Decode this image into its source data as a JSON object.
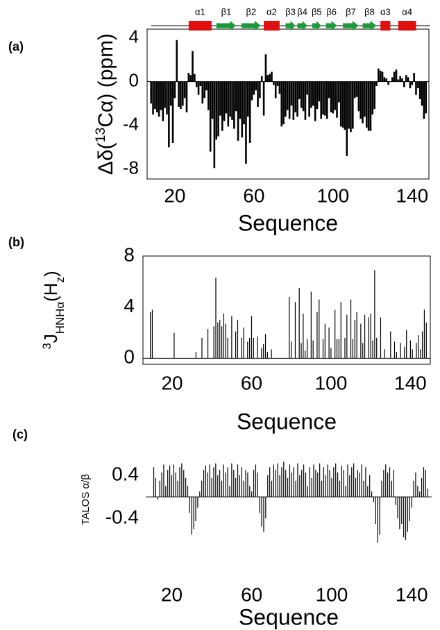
{
  "chart_data": [
    {
      "type": "bar",
      "panel_label": "(a)",
      "y_label": [
        {
          "text": "Δδ("
        },
        {
          "text": "13",
          "script": "sup"
        },
        {
          "text": "Cα) (ppm)"
        }
      ],
      "x_label": "Sequence",
      "xlim": [
        6,
        148.5
      ],
      "ylim": [
        -8.9,
        4.8
      ],
      "xticks": [
        20,
        60,
        100,
        140
      ],
      "yticks": [
        4,
        0,
        -4,
        -8
      ],
      "color": "#000000",
      "grid": false,
      "secondary_structure": [
        {
          "label": "α1",
          "kind": "helix",
          "start": 27,
          "end": 38.6,
          "color": "#e01010"
        },
        {
          "label": "β1",
          "kind": "strand",
          "start": 41,
          "end": 51,
          "color": "#1a9a3a"
        },
        {
          "label": "β2",
          "kind": "strand",
          "start": 53.7,
          "end": 63.5,
          "color": "#1a9a3a"
        },
        {
          "label": "α2",
          "kind": "helix",
          "start": 65,
          "end": 73,
          "color": "#e01010"
        },
        {
          "label": "β3",
          "kind": "strand",
          "start": 76,
          "end": 81,
          "color": "#1a9a3a"
        },
        {
          "label": "β4",
          "kind": "strand",
          "start": 82,
          "end": 87,
          "color": "#1a9a3a"
        },
        {
          "label": "β5",
          "kind": "strand",
          "start": 89.5,
          "end": 94,
          "color": "#1a9a3a"
        },
        {
          "label": "β6",
          "kind": "strand",
          "start": 96.5,
          "end": 102,
          "color": "#1a9a3a"
        },
        {
          "label": "β7",
          "kind": "strand",
          "start": 105,
          "end": 113,
          "color": "#1a9a3a"
        },
        {
          "label": "β8",
          "kind": "strand",
          "start": 115,
          "end": 122,
          "color": "#1a9a3a"
        },
        {
          "label": "α3",
          "kind": "helix",
          "start": 124,
          "end": 129,
          "color": "#e01010"
        },
        {
          "label": "α4",
          "kind": "helix",
          "start": 133,
          "end": 142,
          "color": "#e01010"
        }
      ],
      "x": [
        8,
        9,
        10,
        11,
        12,
        13,
        14,
        15,
        16,
        17,
        18,
        19,
        20,
        21,
        22,
        23,
        24,
        25,
        26,
        27,
        28,
        29,
        30,
        31,
        32,
        33,
        34,
        35,
        36,
        37,
        38,
        39,
        40,
        41,
        42,
        43,
        44,
        45,
        46,
        47,
        48,
        49,
        50,
        51,
        52,
        53,
        54,
        55,
        56,
        57,
        58,
        59,
        60,
        61,
        62,
        63,
        64,
        65,
        66,
        67,
        68,
        69,
        70,
        71,
        72,
        73,
        74,
        75,
        76,
        77,
        78,
        79,
        80,
        81,
        82,
        83,
        84,
        85,
        86,
        87,
        88,
        89,
        90,
        91,
        92,
        93,
        94,
        95,
        96,
        97,
        98,
        99,
        100,
        101,
        102,
        103,
        104,
        105,
        106,
        107,
        108,
        109,
        110,
        111,
        112,
        113,
        114,
        115,
        116,
        117,
        118,
        119,
        120,
        121,
        122,
        123,
        124,
        125,
        126,
        127,
        128,
        129,
        130,
        131,
        132,
        133,
        134,
        135,
        136,
        137,
        138,
        139,
        140,
        141,
        142,
        143,
        144,
        145,
        146,
        147
      ],
      "values": [
        -2,
        -3,
        -2.5,
        -2.8,
        -3.2,
        -2.6,
        -3.6,
        -2.4,
        -3,
        -6,
        -2.2,
        -5.6,
        -1.5,
        3.8,
        -2.3,
        -2.5,
        -2.2,
        -1.5,
        -2.8,
        0.8,
        0.6,
        2.8,
        0.7,
        -0.5,
        -1.2,
        -0.4,
        -2,
        -1.5,
        -0.8,
        -2.6,
        -6.4,
        -3.4,
        -7.9,
        -5.3,
        -5,
        -3.1,
        -4.5,
        -3.6,
        -2.9,
        -4.1,
        -3.2,
        -3.5,
        -4.3,
        -2.7,
        -5.4,
        -3.4,
        -5.1,
        -3.9,
        -7.5,
        -3.2,
        -5.6,
        -1.7,
        -1.2,
        -0.8,
        -2.3,
        -1.5,
        0.5,
        -3.1,
        2.5,
        0.6,
        0.7,
        0.9,
        -0.3,
        -1.5,
        -0.4,
        -1.1,
        -4.1,
        -3.9,
        -3.2,
        -2.6,
        -3.4,
        -2.2,
        -3.5,
        -2.8,
        -3.2,
        -1.6,
        -2.4,
        -2.7,
        -3.5,
        -1.2,
        -3.2,
        -2.4,
        -2.2,
        -3.6,
        -2.5,
        -1.8,
        -3.4,
        -3,
        -3.1,
        -3.4,
        -1.5,
        -2.8,
        -2.9,
        -2.6,
        -3.3,
        -1.9,
        -4.1,
        -4.2,
        -4.4,
        -6.8,
        -4.3,
        -4.6,
        -4.3,
        -1.5,
        -1.4,
        -2.7,
        -3.4,
        -3.8,
        -3.2,
        -4.2,
        -4.5,
        -4.5,
        -3,
        -2.5,
        -0.4,
        1.2,
        1,
        0.9,
        0.4,
        0.3,
        -0.3,
        0,
        0.4,
        0.9,
        1.1,
        0.2,
        0.5,
        0.3,
        -0.5,
        0.6,
        0.4,
        -0.6,
        -0.3,
        0.8,
        -1.2,
        -0.6,
        -1.6,
        -2.2,
        -3.4,
        -2.9
      ]
    },
    {
      "type": "bar",
      "panel_label": "(b)",
      "y_label": [
        {
          "text": "3",
          "script": "sup"
        },
        {
          "text": "J"
        },
        {
          "text": "HNHα",
          "script": "sub"
        },
        {
          "text": "(H"
        },
        {
          "text": "z",
          "script": "sub"
        },
        {
          "text": ")"
        }
      ],
      "x_label": "Sequence",
      "xlim": [
        5.3,
        150
      ],
      "ylim": [
        -0.47,
        8
      ],
      "xticks": [
        20,
        60,
        100,
        140
      ],
      "yticks": [
        8,
        4,
        0
      ],
      "color": "#000000",
      "grid": false,
      "x": [
        9,
        10,
        21,
        32,
        35,
        38,
        41,
        42,
        43,
        44,
        45,
        46,
        47,
        48,
        50,
        52,
        53,
        55,
        56,
        58,
        59,
        60,
        61,
        63,
        65,
        66,
        67,
        68,
        70,
        79,
        80,
        82,
        84,
        85,
        86,
        87,
        88,
        90,
        91,
        93,
        94,
        96,
        97,
        99,
        100,
        102,
        103,
        104,
        105,
        107,
        108,
        110,
        111,
        112,
        113,
        115,
        116,
        117,
        119,
        120,
        121,
        122,
        123,
        125,
        127,
        130,
        132,
        133,
        135,
        137,
        138,
        140,
        141,
        143,
        144,
        145,
        146,
        147,
        148
      ],
      "values": [
        3.6,
        3.8,
        2,
        0.5,
        1.6,
        2.3,
        2.5,
        6.3,
        2.8,
        3,
        2.5,
        3.5,
        2.7,
        1.6,
        3.3,
        2.1,
        3,
        1.6,
        2.4,
        1.3,
        1.6,
        3.3,
        1.6,
        1.7,
        0.8,
        1.1,
        1.9,
        0.5,
        0.7,
        4.8,
        1.3,
        4.4,
        5.5,
        1.2,
        3.5,
        0.6,
        1.5,
        5.2,
        1.4,
        3.6,
        4.6,
        1.5,
        2.7,
        2.4,
        0.8,
        3.8,
        1.5,
        1.5,
        4.4,
        1.6,
        3.4,
        4.6,
        1.5,
        3,
        3.6,
        2.7,
        1.2,
        3.4,
        3.2,
        3.5,
        1.4,
        6.9,
        1.6,
        3.2,
        0.7,
        2.1,
        1.3,
        0.5,
        1.2,
        0.9,
        2.2,
        1.4,
        0.7,
        1.2,
        1.8,
        0.7,
        2.1,
        3.8,
        2.8
      ]
    },
    {
      "type": "bar",
      "panel_label": "(c)",
      "y_label": [
        {
          "text": "TALOS α/β"
        }
      ],
      "x_label": "Sequence",
      "xlim": [
        7,
        150
      ],
      "ylim": [
        -0.95,
        0.85
      ],
      "xticks": [
        20,
        60,
        100,
        140
      ],
      "yticks": [
        0.4,
        -0.4
      ],
      "color": "#000000",
      "grid": false,
      "x": [
        11,
        12,
        13,
        14,
        15,
        16,
        17,
        18,
        19,
        20,
        21,
        22,
        23,
        24,
        25,
        26,
        27,
        28,
        29,
        30,
        31,
        32,
        33,
        34,
        35,
        36,
        37,
        38,
        39,
        40,
        41,
        42,
        43,
        44,
        45,
        46,
        47,
        48,
        49,
        50,
        51,
        52,
        53,
        54,
        55,
        56,
        57,
        58,
        59,
        60,
        61,
        62,
        63,
        64,
        65,
        66,
        67,
        68,
        69,
        70,
        71,
        72,
        73,
        74,
        75,
        76,
        77,
        78,
        79,
        80,
        81,
        82,
        83,
        84,
        85,
        86,
        87,
        88,
        89,
        90,
        91,
        92,
        93,
        94,
        95,
        96,
        97,
        98,
        99,
        100,
        101,
        102,
        103,
        104,
        105,
        106,
        107,
        108,
        109,
        110,
        111,
        112,
        113,
        114,
        115,
        116,
        117,
        118,
        119,
        120,
        121,
        122,
        123,
        124,
        125,
        126,
        127,
        128,
        129,
        130,
        131,
        132,
        133,
        134,
        135,
        136,
        137,
        138,
        139,
        140,
        141,
        142,
        143,
        144,
        145,
        146,
        147,
        148
      ],
      "values": [
        0.55,
        0.35,
        -0.05,
        0.3,
        0.45,
        0.6,
        0.2,
        0.5,
        0.58,
        0.4,
        0.6,
        0.45,
        0.3,
        0.55,
        0.62,
        0.5,
        0.35,
        0.2,
        -0.3,
        -0.7,
        -0.6,
        -0.45,
        -0.2,
        0.1,
        0.3,
        0.5,
        0.58,
        0.45,
        0.6,
        0.35,
        0.55,
        0.62,
        0.4,
        0.5,
        0.3,
        0.6,
        0.45,
        0.55,
        0.2,
        0.62,
        0.5,
        0.35,
        0.6,
        0.4,
        0.55,
        0.3,
        0.5,
        0.45,
        0.2,
        0.1,
        0.5,
        0.6,
        0.45,
        -0.3,
        -0.55,
        -0.65,
        -0.4,
        0.4,
        0.55,
        0.3,
        0.6,
        0.5,
        0.62,
        0.4,
        0.55,
        0.65,
        0.5,
        0.35,
        0.6,
        0.45,
        0.55,
        0.3,
        0.62,
        0.4,
        0.5,
        0.6,
        0.45,
        0.2,
        0.55,
        0.35,
        0.6,
        0.5,
        0.45,
        0.62,
        0.3,
        0.55,
        0.4,
        0.6,
        0.5,
        0.35,
        0.55,
        0.62,
        0.45,
        0.3,
        0.58,
        0.5,
        0.2,
        0.6,
        0.4,
        0.55,
        0.62,
        0.35,
        0.5,
        0.45,
        0.6,
        0.3,
        0.55,
        0.2,
        0.4,
        0.1,
        -0.1,
        -0.5,
        -0.85,
        -0.7,
        0.3,
        0.5,
        0.6,
        0.45,
        0.55,
        0.3,
        0.5,
        -0.15,
        -0.4,
        -0.6,
        -0.5,
        -0.75,
        -0.8,
        -0.65,
        -0.45,
        -0.2,
        0.3,
        0.45,
        0.2,
        0.1,
        0.35,
        0.55,
        0.5,
        0.15
      ]
    }
  ]
}
